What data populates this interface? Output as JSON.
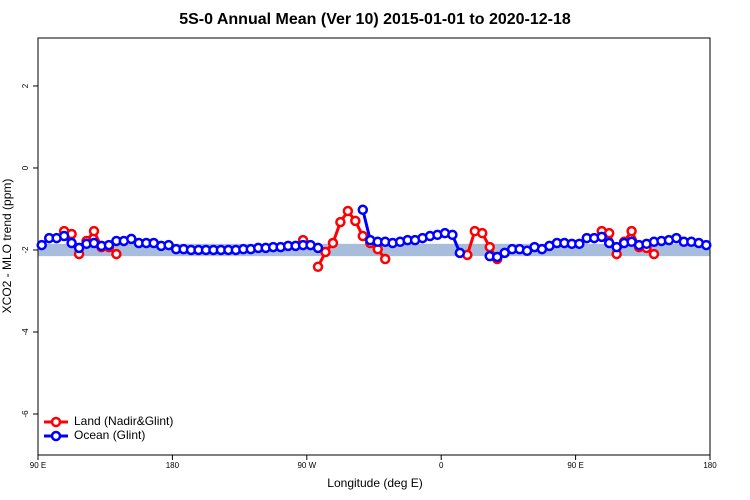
{
  "chart_data": {
    "type": "line",
    "title": "5S-0 Annual Mean (Ver 10)   2015-01-01 to 2020-12-18",
    "x_label": "Longitude (deg E)",
    "y_label": "XCO2 - MLO trend (ppm)",
    "xlim": [
      90,
      540
    ],
    "xticks": [
      {
        "value": 90,
        "label": "90 E"
      },
      180,
      {
        "value": 270,
        "label": "90 W"
      },
      {
        "value": 360,
        "label": "0"
      },
      {
        "value": 450,
        "label": "90 E"
      },
      {
        "value": 540,
        "label": "180"
      }
    ],
    "ylim": [
      -7,
      3.17
    ],
    "yticks": [
      -6,
      -4,
      -2,
      0,
      2
    ],
    "legend": "bottom-left",
    "band": {
      "lower": -2.15,
      "upper": -1.85,
      "color": "#a8bcdc"
    },
    "x": [
      92.5,
      97.5,
      102.5,
      107.5,
      112.5,
      117.5,
      122.5,
      127.5,
      132.5,
      137.5,
      142.5,
      147.5,
      152.5,
      157.5,
      162.5,
      167.5,
      172.5,
      177.5,
      182.5,
      187.5,
      192.5,
      197.5,
      202.5,
      207.5,
      212.5,
      217.5,
      222.5,
      227.5,
      232.5,
      237.5,
      242.5,
      247.5,
      252.5,
      257.5,
      262.5,
      267.5,
      272.5,
      277.5,
      282.5,
      287.5,
      292.5,
      297.5,
      302.5,
      307.5,
      312.5,
      317.5,
      322.5,
      327.5,
      332.5,
      337.5,
      342.5,
      347.5,
      352.5,
      357.5,
      362.5,
      367.5,
      372.5,
      377.5,
      382.5,
      387.5,
      392.5,
      397.5,
      402.5,
      407.5,
      412.5,
      417.5,
      422.5,
      427.5,
      432.5,
      437.5,
      442.5,
      447.5,
      452.5,
      457.5,
      462.5,
      467.5,
      472.5,
      477.5,
      482.5,
      487.5,
      492.5,
      497.5,
      502.5,
      507.5,
      512.5,
      517.5,
      522.5,
      527.5,
      532.5,
      537.5
    ],
    "series": [
      {
        "name": "Land (Nadir&Glint)",
        "color": "#ff0000",
        "values": [
          null,
          null,
          null,
          -1.54,
          -1.61,
          -2.1,
          -1.78,
          -1.54,
          -1.93,
          -1.93,
          -2.1,
          null,
          null,
          null,
          null,
          null,
          null,
          null,
          null,
          null,
          null,
          null,
          null,
          null,
          null,
          null,
          null,
          null,
          null,
          null,
          null,
          null,
          null,
          null,
          null,
          -1.76,
          null,
          -2.41,
          -2.05,
          -1.83,
          -1.32,
          -1.05,
          -1.29,
          -1.66,
          -1.83,
          -1.98,
          -2.22,
          null,
          null,
          null,
          null,
          null,
          null,
          null,
          null,
          null,
          null,
          -2.12,
          -1.54,
          -1.59,
          -1.93,
          -2.22,
          null,
          null,
          null,
          null,
          null,
          null,
          null,
          null,
          null,
          null,
          null,
          null,
          null,
          -1.54,
          -1.59,
          -2.1,
          -1.8,
          -1.54,
          -1.93,
          -1.95,
          -2.1,
          null,
          null,
          null,
          null,
          null,
          null,
          null
        ]
      },
      {
        "name": "Ocean (Glint)",
        "color": "#0000ff",
        "values": [
          -1.88,
          -1.71,
          -1.71,
          -1.66,
          -1.83,
          -1.95,
          -1.85,
          -1.83,
          -1.9,
          -1.88,
          -1.78,
          -1.78,
          -1.73,
          -1.83,
          -1.83,
          -1.83,
          -1.9,
          -1.88,
          -1.98,
          -1.98,
          -2.0,
          -2.0,
          -2.0,
          -2.0,
          -2.0,
          -2.0,
          -2.0,
          -1.98,
          -1.98,
          -1.95,
          -1.95,
          -1.93,
          -1.93,
          -1.9,
          -1.9,
          -1.88,
          -1.88,
          -1.95,
          null,
          null,
          null,
          null,
          null,
          -1.02,
          -1.76,
          -1.8,
          -1.8,
          -1.83,
          -1.8,
          -1.76,
          -1.76,
          -1.71,
          -1.66,
          -1.63,
          -1.59,
          -1.63,
          -2.07,
          null,
          null,
          null,
          -2.15,
          -2.17,
          -2.07,
          -1.98,
          -1.98,
          -2.02,
          -1.93,
          -1.98,
          -1.9,
          -1.83,
          -1.83,
          -1.85,
          -1.85,
          -1.71,
          -1.71,
          -1.68,
          -1.83,
          -1.93,
          -1.83,
          -1.8,
          -1.88,
          -1.85,
          -1.8,
          -1.78,
          -1.76,
          -1.71,
          -1.8,
          -1.8,
          -1.83,
          -1.88
        ]
      }
    ]
  }
}
